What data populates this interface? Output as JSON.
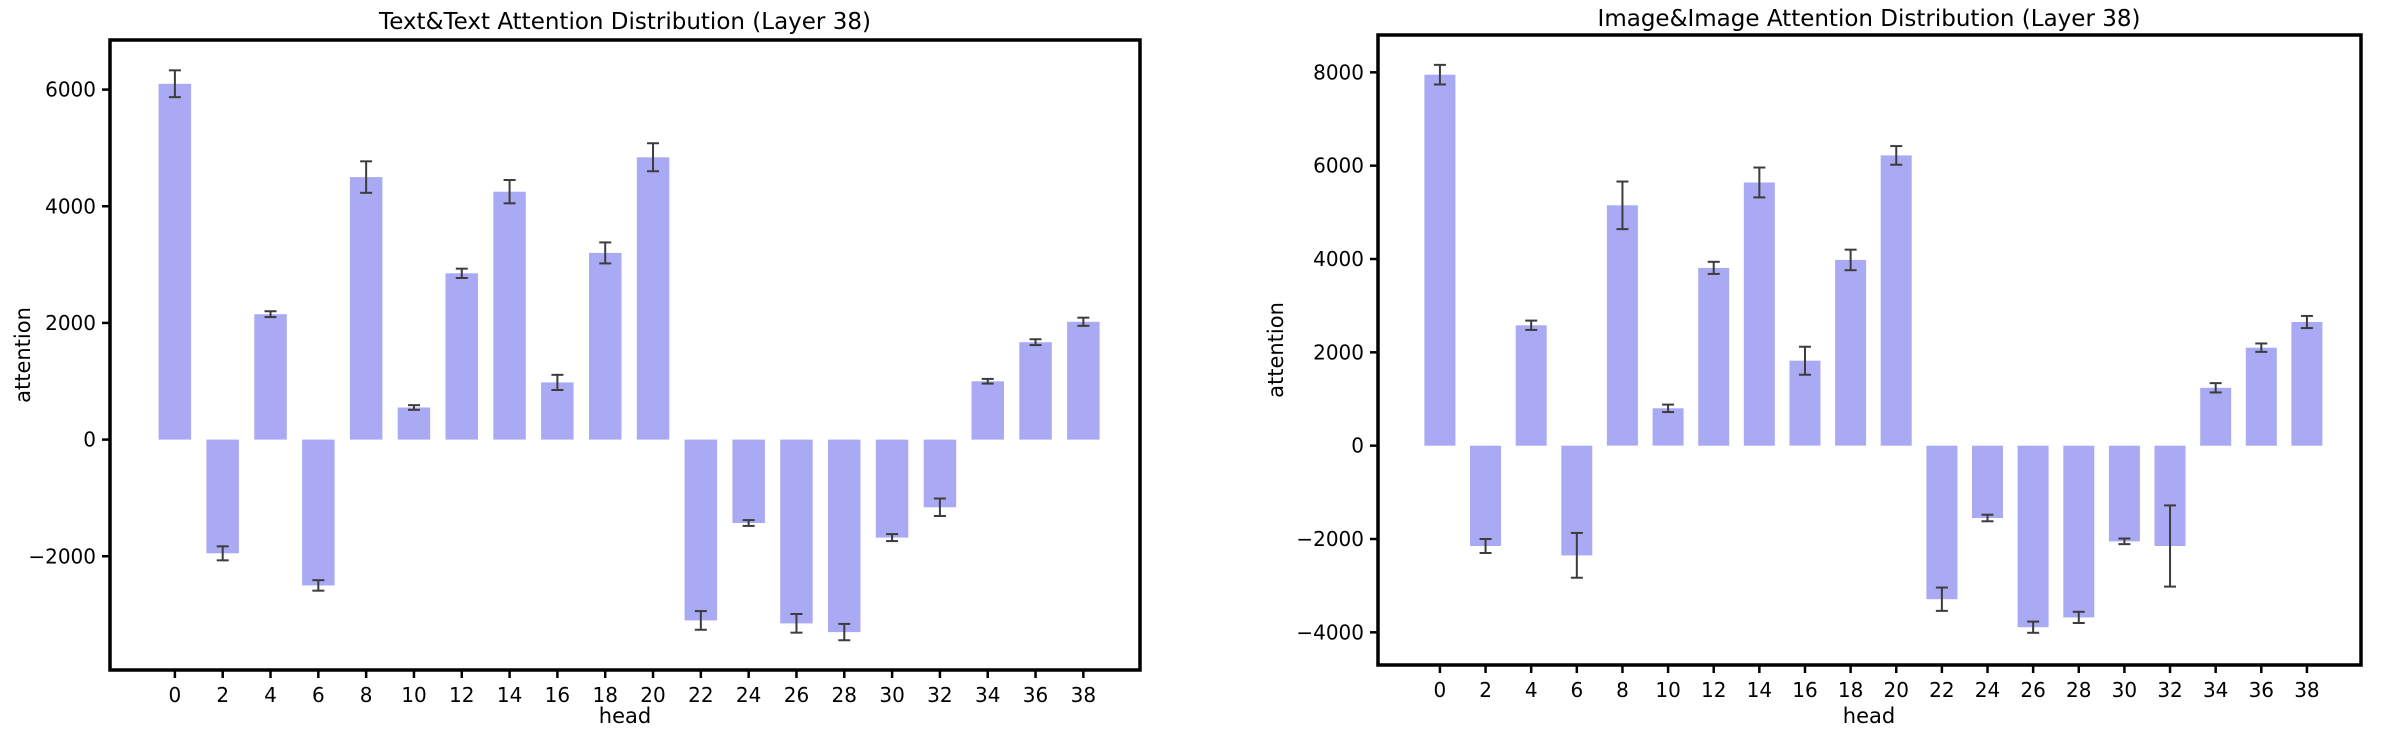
{
  "figure": {
    "background": "#ffffff",
    "bar_color": "#a9aaf3",
    "error_bar_color": "#3c3c3c"
  },
  "chart_data": [
    {
      "type": "bar",
      "title": "Text&Text Attention Distribution (Layer 38)",
      "xlabel": "head",
      "ylabel": "attention",
      "categories": [
        "0",
        "2",
        "4",
        "6",
        "8",
        "10",
        "12",
        "14",
        "16",
        "18",
        "20",
        "22",
        "24",
        "26",
        "28",
        "30",
        "32",
        "34",
        "36",
        "38"
      ],
      "values": [
        6100,
        -1950,
        2150,
        -2500,
        4500,
        550,
        2850,
        4250,
        980,
        3200,
        4840,
        -3100,
        -1430,
        -3150,
        -3300,
        -1680,
        -1160,
        1000,
        1670,
        2020
      ],
      "errors": [
        230,
        120,
        50,
        90,
        270,
        40,
        80,
        200,
        130,
        180,
        240,
        160,
        50,
        160,
        140,
        60,
        150,
        40,
        50,
        70
      ],
      "ylim": [
        -3950,
        6850
      ],
      "yticks": [
        6000,
        4000,
        2000,
        0,
        -2000
      ],
      "grid": false,
      "legend": "none",
      "bar_color": "#a9aaf3",
      "error_color": "#3c3c3c"
    },
    {
      "type": "bar",
      "title": "Image&Image Attention Distribution (Layer 38)",
      "xlabel": "head",
      "ylabel": "attention",
      "categories": [
        "0",
        "2",
        "4",
        "6",
        "8",
        "10",
        "12",
        "14",
        "16",
        "18",
        "20",
        "22",
        "24",
        "26",
        "28",
        "30",
        "32",
        "34",
        "36",
        "38"
      ],
      "values": [
        7950,
        -2150,
        2580,
        -2350,
        5150,
        800,
        3810,
        5640,
        1820,
        3980,
        6220,
        -3290,
        -1550,
        -3890,
        -3680,
        -2050,
        -2150,
        1240,
        2100,
        2650
      ],
      "errors": [
        210,
        150,
        100,
        480,
        510,
        80,
        130,
        320,
        300,
        220,
        200,
        250,
        70,
        120,
        120,
        60,
        870,
        100,
        90,
        130
      ],
      "ylim": [
        -4700,
        8800
      ],
      "yticks": [
        8000,
        6000,
        4000,
        2000,
        0,
        -2000,
        -4000
      ],
      "grid": false,
      "legend": "none",
      "bar_color": "#a9aaf3",
      "error_color": "#3c3c3c"
    }
  ]
}
